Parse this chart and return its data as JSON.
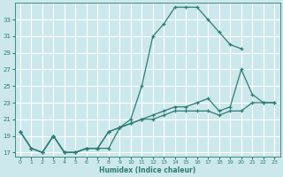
{
  "title": "",
  "xlabel": "Humidex (Indice chaleur)",
  "bg_color": "#cce8ec",
  "grid_color": "#ffffff",
  "line_color": "#2e7d72",
  "xlim": [
    -0.5,
    23.5
  ],
  "ylim": [
    16.5,
    35
  ],
  "xticks": [
    0,
    1,
    2,
    3,
    4,
    5,
    6,
    7,
    8,
    9,
    10,
    11,
    12,
    13,
    14,
    15,
    16,
    17,
    18,
    19,
    20,
    21,
    22,
    23
  ],
  "yticks": [
    17,
    19,
    21,
    23,
    25,
    27,
    29,
    31,
    33
  ],
  "series": [
    {
      "x": [
        0,
        1,
        2,
        3,
        4,
        5,
        6,
        7,
        8,
        9,
        10,
        11,
        12,
        13,
        14,
        15,
        16,
        17,
        18,
        19,
        20
      ],
      "y": [
        19.5,
        17.5,
        17.0,
        19.0,
        17.0,
        17.0,
        17.5,
        17.5,
        17.5,
        20.0,
        21.0,
        25.0,
        31.0,
        32.5,
        34.5,
        34.5,
        34.5,
        33.0,
        31.5,
        30.0,
        29.5
      ]
    },
    {
      "x": [
        0,
        1,
        2,
        3,
        4,
        5,
        6,
        7,
        8,
        9,
        10,
        11,
        12,
        13,
        14,
        15,
        16,
        17,
        18,
        19,
        20,
        21,
        22,
        23
      ],
      "y": [
        19.5,
        17.5,
        17.0,
        19.0,
        17.0,
        17.0,
        17.5,
        17.5,
        19.5,
        20.0,
        20.5,
        21.0,
        21.5,
        22.0,
        22.5,
        22.5,
        23.0,
        23.5,
        22.0,
        22.5,
        27.0,
        24.0,
        23.0,
        23.0
      ]
    },
    {
      "x": [
        0,
        1,
        2,
        3,
        4,
        5,
        6,
        7,
        8,
        9,
        10,
        11,
        12,
        13,
        14,
        15,
        16,
        17,
        18,
        19,
        20,
        21,
        22,
        23
      ],
      "y": [
        19.5,
        17.5,
        17.0,
        19.0,
        17.0,
        17.0,
        17.5,
        17.5,
        19.5,
        20.0,
        20.5,
        21.0,
        21.0,
        21.5,
        22.0,
        22.0,
        22.0,
        22.0,
        21.5,
        22.0,
        22.0,
        23.0,
        23.0,
        23.0
      ]
    }
  ]
}
